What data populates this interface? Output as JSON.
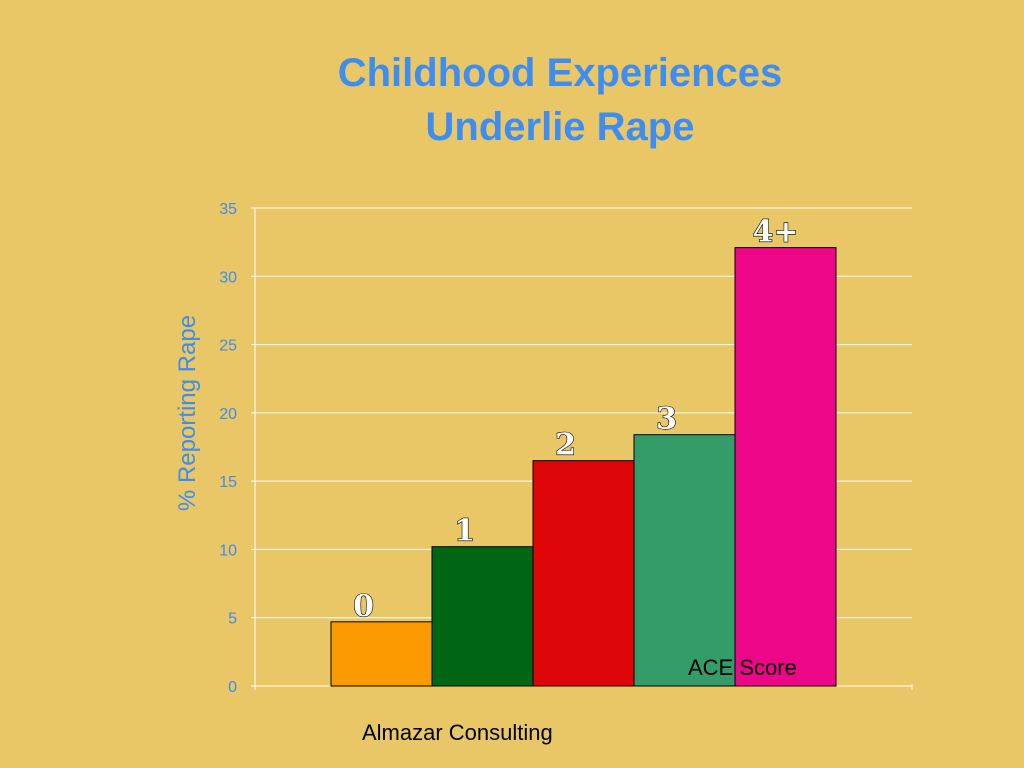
{
  "slide": {
    "title_line1": "Childhood Experiences",
    "title_line2": "Underlie Rape",
    "footer": "Almazar Consulting"
  },
  "colors": {
    "background": "#e9c666",
    "title": "#3d8ef0",
    "gridline": "#ffffff"
  },
  "chart_data": {
    "type": "bar",
    "title": "Childhood Experiences Underlie Rape",
    "xlabel": "ACE Score",
    "ylabel": "% Reporting Rape",
    "ylim": [
      0,
      35
    ],
    "yticks": [
      0,
      5,
      10,
      15,
      20,
      25,
      30,
      35
    ],
    "grid": true,
    "categories": [
      "0",
      "1",
      "2",
      "3",
      "4+"
    ],
    "values": [
      4.7,
      10.2,
      16.5,
      18.4,
      32.1
    ],
    "bar_colors": [
      "#fa9a00",
      "#006614",
      "#dd0508",
      "#349c68",
      "#ee0689"
    ]
  }
}
